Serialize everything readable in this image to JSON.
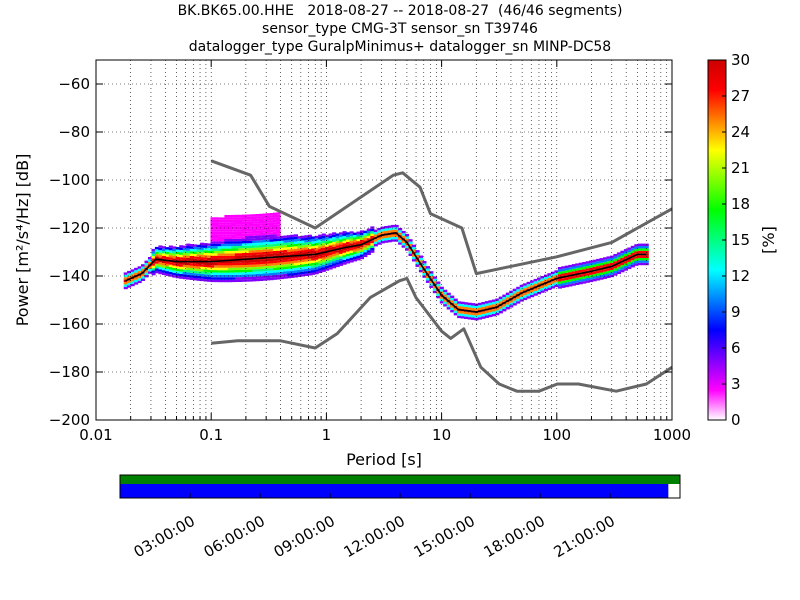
{
  "title_lines": [
    "BK.BK65.00.HHE   2018-08-27 -- 2018-08-27  (46/46 segments)",
    "sensor_type CMG-3T sensor_sn T39746",
    "datalogger_type GuralpMinimus+ datalogger_sn MINP-DC58"
  ],
  "chart_data": [
    {
      "type": "heatmap",
      "xlabel": "Period [s]",
      "ylabel": "Power [m²/s⁴/Hz] [dB]",
      "xscale": "log",
      "xlim": [
        0.01,
        1000
      ],
      "ylim": [
        -200,
        -50
      ],
      "x_ticks": [
        0.01,
        0.1,
        1,
        10,
        100,
        1000
      ],
      "x_tick_labels": [
        "0.01",
        "0.1",
        "1",
        "10",
        "100",
        "1000"
      ],
      "y_ticks": [
        -200,
        -180,
        -160,
        -140,
        -120,
        -100,
        -80,
        -60
      ],
      "y_tick_labels": [
        "−200",
        "−180",
        "−160",
        "−140",
        "−120",
        "−100",
        "−80",
        "−60"
      ],
      "colorbar": {
        "label": "[%]",
        "min": 0,
        "max": 30,
        "ticks": [
          0,
          3,
          6,
          9,
          12,
          15,
          18,
          21,
          24,
          27,
          30
        ],
        "colormap": [
          "#ffffff",
          "#ff00ff",
          "#8000ff",
          "#0000ff",
          "#0080ff",
          "#00ffff",
          "#00ff80",
          "#00ff00",
          "#80ff00",
          "#ffff00",
          "#ff8000",
          "#ff0000",
          "#cc0000"
        ]
      },
      "noise_models": {
        "color": "#666666",
        "NHNM": [
          [
            0.1,
            -92
          ],
          [
            0.22,
            -98
          ],
          [
            0.32,
            -111
          ],
          [
            0.8,
            -120
          ],
          [
            3.8,
            -98
          ],
          [
            4.6,
            -97
          ],
          [
            6.5,
            -103
          ],
          [
            8.0,
            -114
          ],
          [
            15.0,
            -120
          ],
          [
            20.0,
            -139
          ],
          [
            100.0,
            -132
          ],
          [
            300.0,
            -126
          ],
          [
            1000.0,
            -112
          ]
        ],
        "NLNM": [
          [
            0.1,
            -168
          ],
          [
            0.17,
            -167
          ],
          [
            0.4,
            -167
          ],
          [
            0.8,
            -170
          ],
          [
            1.24,
            -164
          ],
          [
            2.4,
            -149
          ],
          [
            4.3,
            -142
          ],
          [
            5.0,
            -141
          ],
          [
            6.0,
            -149
          ],
          [
            10.0,
            -163
          ],
          [
            12.0,
            -166
          ],
          [
            15.6,
            -162
          ],
          [
            21.9,
            -178
          ],
          [
            31.6,
            -185
          ],
          [
            45.0,
            -188
          ],
          [
            70.0,
            -188
          ],
          [
            101.0,
            -185
          ],
          [
            154.0,
            -185
          ],
          [
            328.0,
            -188
          ],
          [
            600.0,
            -185
          ],
          [
            1000.0,
            -178
          ]
        ]
      },
      "median_curve": {
        "color": "#000000",
        "points": [
          [
            0.018,
            -142
          ],
          [
            0.025,
            -139
          ],
          [
            0.033,
            -133
          ],
          [
            0.05,
            -134
          ],
          [
            0.1,
            -134
          ],
          [
            0.2,
            -133
          ],
          [
            0.4,
            -132
          ],
          [
            0.8,
            -131
          ],
          [
            1.5,
            -128
          ],
          [
            2.0,
            -127
          ],
          [
            3.0,
            -123
          ],
          [
            4.0,
            -122
          ],
          [
            5.0,
            -126
          ],
          [
            7.0,
            -137
          ],
          [
            10.0,
            -148
          ],
          [
            14.0,
            -154
          ],
          [
            20.0,
            -155
          ],
          [
            30.0,
            -153
          ],
          [
            50.0,
            -147
          ],
          [
            100.0,
            -141
          ],
          [
            200.0,
            -138
          ],
          [
            300.0,
            -136
          ],
          [
            500.0,
            -131
          ],
          [
            600.0,
            -131
          ]
        ]
      }
    },
    {
      "type": "timeline",
      "x_tick_labels": [
        "03:00:00",
        "06:00:00",
        "09:00:00",
        "12:00:00",
        "15:00:00",
        "18:00:00",
        "21:00:00"
      ],
      "x_ticks_hours": [
        3,
        6,
        9,
        12,
        15,
        18,
        21
      ],
      "xlim_hours": [
        0,
        24
      ],
      "data_coverage_hours": [
        [
          0,
          24
        ]
      ],
      "psd_coverage_hours": [
        [
          0,
          23.5
        ]
      ],
      "data_color": "#008000",
      "psd_color": "#0000ff"
    }
  ]
}
